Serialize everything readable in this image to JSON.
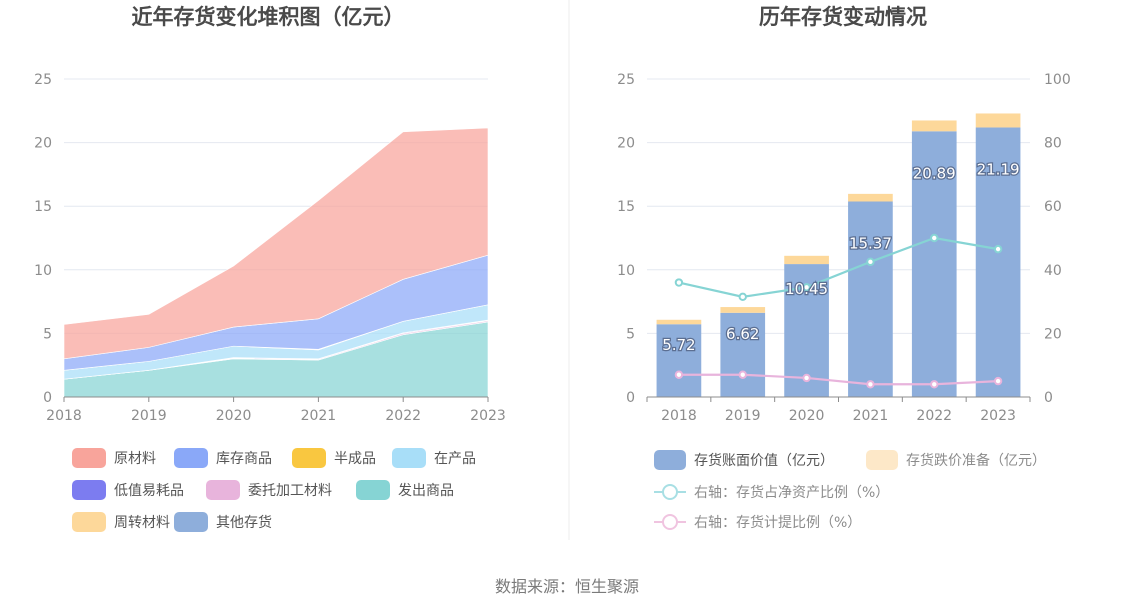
{
  "left_chart": {
    "title": "近年存货变化堆积图（亿元）",
    "legend": [
      {
        "name": "原材料",
        "color": "#f8a49b"
      },
      {
        "name": "库存商品",
        "color": "#8aa8f8"
      },
      {
        "name": "半成品",
        "color": "#f9c740"
      },
      {
        "name": "在产品",
        "color": "#a8def8"
      },
      {
        "name": "低值易耗品",
        "color": "#7c7cf0"
      },
      {
        "name": "委托加工材料",
        "color": "#e8b4dc"
      },
      {
        "name": "发出商品",
        "color": "#86d4d4"
      },
      {
        "name": "周转材料",
        "color": "#fdd89a"
      },
      {
        "name": "其他存货",
        "color": "#8eaedb"
      }
    ]
  },
  "right_chart": {
    "title": "历年存货变动情况",
    "legend": [
      {
        "name": "存货账面价值（亿元）",
        "color": "#8eaedb",
        "kind": "rect"
      },
      {
        "name": "存货跌价准备（亿元）",
        "color": "#fde8c8",
        "kind": "rect"
      },
      {
        "name": "右轴：存货占净资产比例（%）",
        "color": "#a8dfe4",
        "kind": "line"
      },
      {
        "name": "右轴：存货计提比例（%）",
        "color": "#f0c4e0",
        "kind": "line"
      }
    ]
  },
  "chart_data": [
    {
      "type": "area",
      "stacked": true,
      "title": "近年存货变化堆积图（亿元）",
      "x": [
        "2018",
        "2019",
        "2020",
        "2021",
        "2022",
        "2023"
      ],
      "ylim": [
        0,
        25
      ],
      "yticks": [
        0,
        5,
        10,
        15,
        20,
        25
      ],
      "grid": true,
      "legend_position": "bottom",
      "series": [
        {
          "name": "发出商品",
          "color": "#86d4d4",
          "values": [
            1.4,
            2.1,
            3.0,
            2.9,
            4.9,
            5.9
          ]
        },
        {
          "name": "委托加工材料",
          "color": "#e8b4dc",
          "values": [
            0.0,
            0.0,
            0.05,
            0.05,
            0.1,
            0.1
          ]
        },
        {
          "name": "低值易耗品",
          "color": "#7c7cf0",
          "values": [
            0.0,
            0.0,
            0.05,
            0.05,
            0.05,
            0.05
          ]
        },
        {
          "name": "在产品",
          "color": "#a8def8",
          "values": [
            0.7,
            0.7,
            0.9,
            0.7,
            0.9,
            1.2
          ]
        },
        {
          "name": "半成品",
          "color": "#f9c740",
          "values": [
            0.0,
            0.0,
            0.0,
            0.05,
            0.0,
            0.0
          ]
        },
        {
          "name": "库存商品",
          "color": "#8aa8f8",
          "values": [
            0.9,
            1.1,
            1.5,
            2.4,
            3.3,
            3.9
          ]
        },
        {
          "name": "原材料",
          "color": "#f8a49b",
          "values": [
            2.7,
            2.6,
            4.8,
            9.3,
            11.6,
            10.0
          ]
        }
      ]
    },
    {
      "type": "bar",
      "stacked": true,
      "title": "历年存货变动情况",
      "categories": [
        "2018",
        "2019",
        "2020",
        "2021",
        "2022",
        "2023"
      ],
      "ylim": [
        0,
        25
      ],
      "yticks": [
        0,
        5,
        10,
        15,
        20,
        25
      ],
      "y2lim": [
        0,
        100
      ],
      "y2ticks": [
        0,
        20,
        40,
        60,
        80,
        100
      ],
      "grid": true,
      "legend_position": "bottom",
      "series": [
        {
          "name": "存货账面价值（亿元）",
          "color": "#8eaedb",
          "values": [
            5.72,
            6.62,
            10.45,
            15.37,
            20.89,
            21.19
          ],
          "labels": [
            "5.72",
            "6.62",
            "10.45",
            "15.37",
            "20.89",
            "21.19"
          ]
        },
        {
          "name": "存货跌价准备（亿元）",
          "color": "#fdd89a",
          "values": [
            0.35,
            0.45,
            0.65,
            0.6,
            0.85,
            1.1
          ]
        }
      ],
      "lines": [
        {
          "name": "右轴：存货占净资产比例（%）",
          "color": "#86d4d4",
          "axis": "right",
          "values": [
            36,
            31.5,
            34.5,
            42.5,
            50,
            46.5
          ]
        },
        {
          "name": "右轴：存货计提比例（%）",
          "color": "#e8b4dc",
          "axis": "right",
          "values": [
            7,
            7,
            6,
            4,
            4,
            5
          ]
        }
      ]
    }
  ],
  "footer": {
    "source": "数据来源：恒生聚源"
  }
}
